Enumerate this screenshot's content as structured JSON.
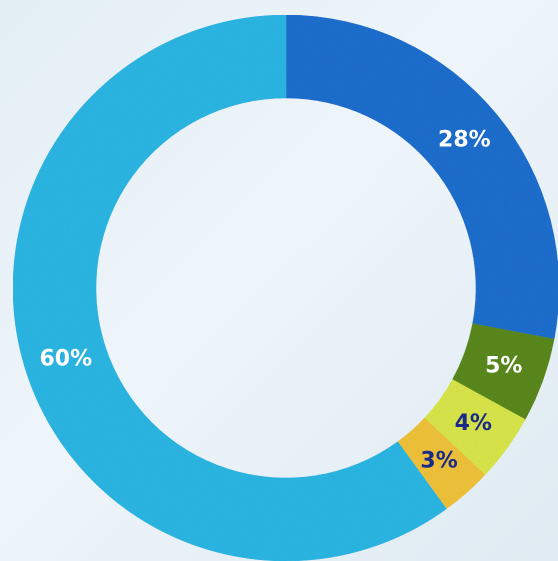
{
  "chart_data": {
    "type": "pie",
    "variant": "donut",
    "title": "",
    "start": "top",
    "direction": "clockwise",
    "slices": [
      {
        "label": "28%",
        "value": 28,
        "color": "#1f6fd0",
        "label_color": "#ffffff"
      },
      {
        "label": "5%",
        "value": 5,
        "color": "#5b8a1e",
        "label_color": "#ffffff"
      },
      {
        "label": "4%",
        "value": 4,
        "color": "#dbe84a",
        "label_color": "#1a2a8a"
      },
      {
        "label": "3%",
        "value": 3,
        "color": "#f2c43a",
        "label_color": "#1a2a8a"
      },
      {
        "label": "60%",
        "value": 60,
        "color": "#2cb8e6",
        "label_color": "#ffffff"
      }
    ]
  }
}
